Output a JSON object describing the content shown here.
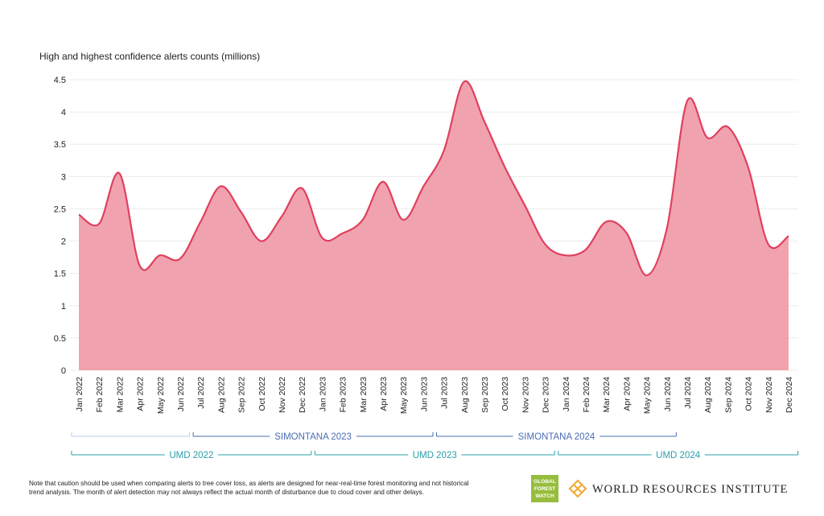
{
  "chart_data": {
    "type": "area",
    "title": "High and highest confidence alerts counts (millions)",
    "categories": [
      "Jan 2022",
      "Feb 2022",
      "Mar 2022",
      "Apr 2022",
      "May 2022",
      "Jun 2022",
      "Jul 2022",
      "Aug 2022",
      "Sep 2022",
      "Oct 2022",
      "Nov 2022",
      "Dec 2022",
      "Jan 2023",
      "Feb 2023",
      "Mar 2023",
      "Apr 2023",
      "May 2023",
      "Jun 2023",
      "Jul 2023",
      "Aug 2023",
      "Sep 2023",
      "Oct 2023",
      "Nov 2023",
      "Dec 2023",
      "Jan 2024",
      "Feb 2024",
      "Mar 2024",
      "Apr 2024",
      "May 2024",
      "Jun 2024",
      "Jul 2024",
      "Aug 2024",
      "Sep 2024",
      "Oct 2024",
      "Nov 2024",
      "Dec 2024"
    ],
    "values": [
      2.41,
      2.27,
      3.05,
      1.62,
      1.78,
      1.73,
      2.3,
      2.85,
      2.45,
      2.0,
      2.38,
      2.82,
      2.05,
      2.12,
      2.33,
      2.92,
      2.33,
      2.85,
      3.4,
      4.47,
      3.85,
      3.15,
      2.55,
      1.95,
      1.78,
      1.87,
      2.3,
      2.13,
      1.47,
      2.2,
      4.17,
      3.6,
      3.77,
      3.15,
      1.95,
      2.08
    ],
    "color": "#e0405e",
    "fill": "#f0a3ae",
    "ylim": [
      0,
      4.5
    ],
    "yticks": [
      0,
      0.5,
      1,
      1.5,
      2,
      2.5,
      3,
      3.5,
      4,
      4.5
    ],
    "grid": true,
    "periods_top": [
      {
        "label": null,
        "start": "Jan 2022",
        "end": "Jun 2022",
        "color": "#b9cfe6"
      },
      {
        "label": "SIMONTANA 2023",
        "start": "Jul 2022",
        "end": "Jun 2023",
        "color": "#4a6db5"
      },
      {
        "label": "SIMONTANA 2024",
        "start": "Jul 2023",
        "end": "Jun 2024",
        "color": "#4a6db5"
      }
    ],
    "periods_bottom": [
      {
        "label": "UMD 2022",
        "start": "Jan 2022",
        "end": "Dec 2022",
        "color": "#2aa0a8"
      },
      {
        "label": "UMD 2023",
        "start": "Jan 2023",
        "end": "Dec 2023",
        "color": "#2aa0a8"
      },
      {
        "label": "UMD 2024",
        "start": "Jan 2024",
        "end": "Dec 2024",
        "color": "#2aa0a8"
      }
    ],
    "note": [
      "Note that caution should be used when comparing alerts to tree cover loss, as alerts are designed for near-real-time forest monitoring and not historical",
      "trend analysis. The month of alert detection may not always reflect the actual month of disturbance due to cloud cover and other delays."
    ],
    "logo_gfw": [
      "GLOBAL",
      "FOREST",
      "WATCH"
    ],
    "logo_wri": "WORLD RESOURCES INSTITUTE"
  }
}
